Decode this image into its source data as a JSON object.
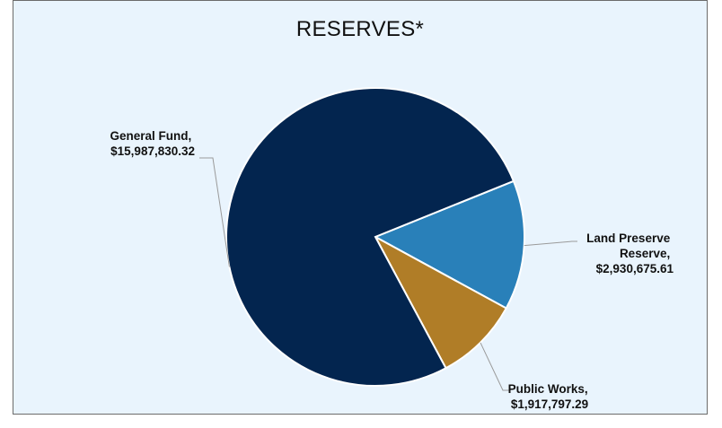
{
  "chart_data": {
    "type": "pie",
    "title": "RESERVES*",
    "slices": [
      {
        "name": "General Fund",
        "value": 15987830.32,
        "label_line1": "General Fund,",
        "label_line2": "$15,987,830.32",
        "color": "#03254f"
      },
      {
        "name": "Land Preserve Reserve",
        "value": 2930675.61,
        "label_line1": "Land Preserve",
        "label_line2": "Reserve,",
        "label_line3": "$2,930,675.61",
        "color": "#2980b9"
      },
      {
        "name": "Public Works",
        "value": 1917797.29,
        "label_line1": "Public Works,",
        "label_line2": "$1,917,797.29",
        "color": "#b07d27"
      }
    ],
    "legend": false
  }
}
